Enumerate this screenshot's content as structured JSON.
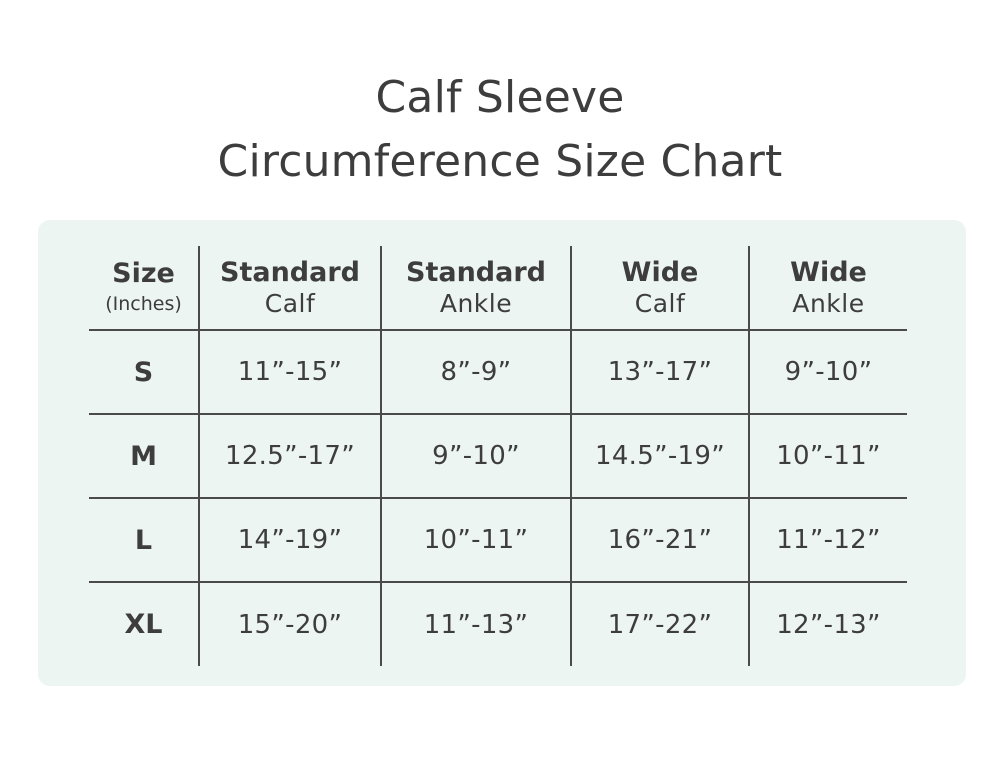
{
  "title": {
    "line1": "Calf Sleeve",
    "line2": "Circumference Size Chart"
  },
  "table": {
    "headers": [
      {
        "bold": "Size",
        "light": "(Inches)"
      },
      {
        "bold": "Standard",
        "light": "Calf"
      },
      {
        "bold": "Standard",
        "light": "Ankle"
      },
      {
        "bold": "Wide",
        "light": "Calf"
      },
      {
        "bold": "Wide",
        "light": "Ankle"
      }
    ],
    "rows": [
      {
        "size": "S",
        "cells": [
          "11”-15”",
          "8”-9”",
          "13”-17”",
          "9”-10”"
        ]
      },
      {
        "size": "M",
        "cells": [
          "12.5”-17”",
          "9”-10”",
          "14.5”-19”",
          "10”-11”"
        ]
      },
      {
        "size": "L",
        "cells": [
          "14”-19”",
          "10”-11”",
          "16”-21”",
          "11”-12”"
        ]
      },
      {
        "size": "XL",
        "cells": [
          "15”-20”",
          "11”-13”",
          "17”-22”",
          "12”-13”"
        ]
      }
    ]
  }
}
